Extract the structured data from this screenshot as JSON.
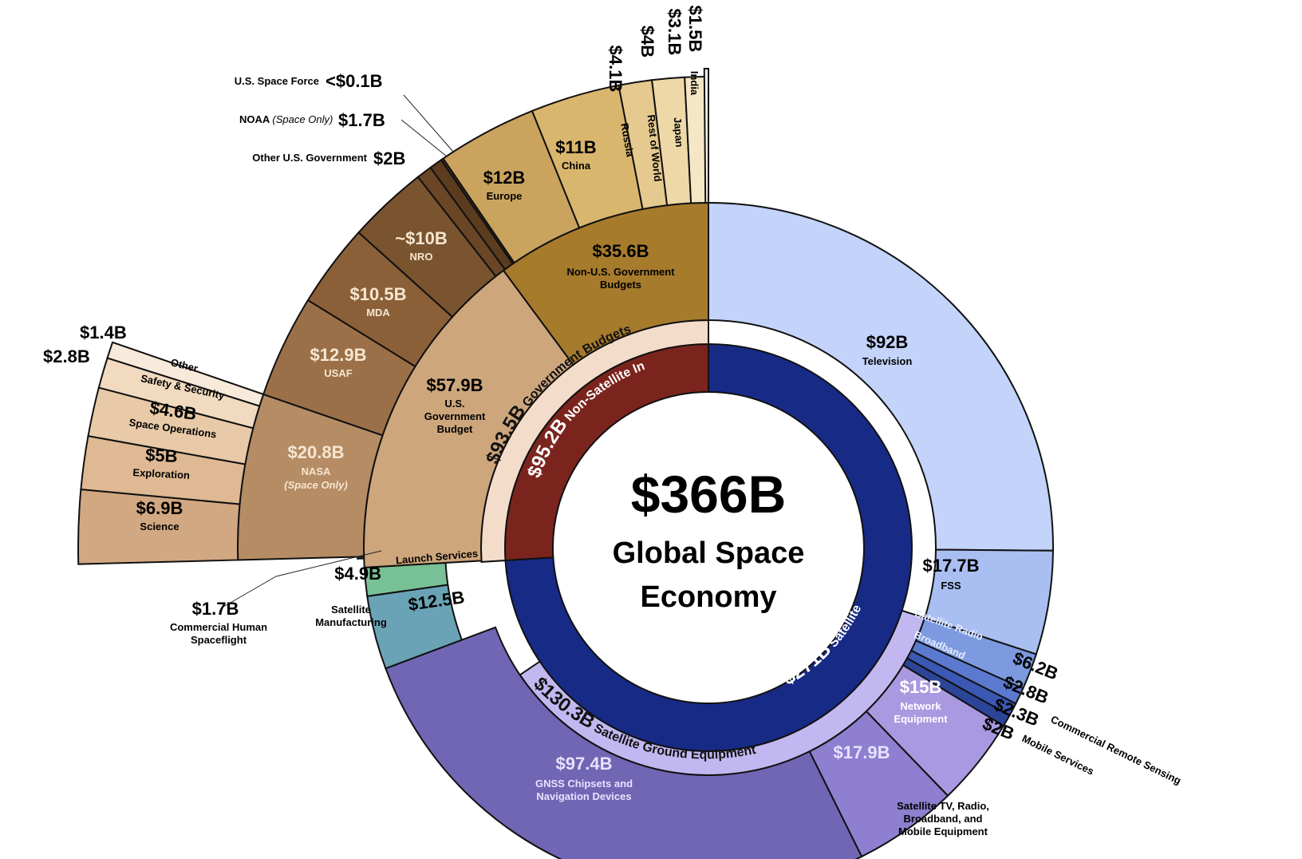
{
  "chart_data": {
    "type": "sunburst",
    "total": {
      "value": "$366B",
      "title_line1": "Global Space",
      "title_line2": "Economy"
    },
    "segments": {
      "tv": {
        "value": "$92B",
        "label": "Television",
        "color": "#c3d3fa"
      },
      "fss": {
        "value": "$17.7B",
        "label": "FSS",
        "color": "#a9bff1"
      },
      "radio": {
        "value": "$6.2B",
        "label": "Satellite Radio",
        "color": "#7d9ae0"
      },
      "broadband": {
        "value": "$2.8B",
        "label": "Broadband",
        "color": "#5b79cf"
      },
      "remote_sensing": {
        "value": "$2.3B",
        "label": "Commercial Remote Sensing",
        "color": "#3b58b4"
      },
      "mobile": {
        "value": "$2B",
        "label": "Mobile Services",
        "color": "#2c4598"
      },
      "network": {
        "value": "$15B",
        "label_line1": "Network",
        "label_line2": "Equipment",
        "color": "#a999e0"
      },
      "consumer": {
        "value": "$17.9B",
        "label_line1": "Satellite TV, Radio,",
        "label_line2": "Broadband, and",
        "label_line3": "Mobile Equipment",
        "color": "#8e7fd0"
      },
      "gnss": {
        "value": "$97.4B",
        "label_line1": "GNSS Chipsets and",
        "label_line2": "Navigation Devices",
        "color": "#7066b4"
      },
      "sat_manuf": {
        "value": "$12.5B",
        "label_line1": "Satellite",
        "label_line2": "Manufacturing",
        "color": "#6aa3b6"
      },
      "launch": {
        "value": "$4.9B",
        "label": "Launch Services",
        "color": "#78c096"
      },
      "chsf": {
        "value": "$1.7B",
        "label_line1": "Commercial Human",
        "label_line2": "Spaceflight",
        "color": "#8a6a48"
      },
      "science": {
        "value": "$6.9B",
        "label": "Science",
        "color": "#d2a882"
      },
      "exploration": {
        "value": "$5B",
        "label": "Exploration",
        "color": "#deb994"
      },
      "space_ops": {
        "value": "$4.6B",
        "label": "Space Operations",
        "color": "#e8caa8"
      },
      "safety": {
        "value": "$2.8B",
        "label": "Safety & Security",
        "color": "#f1dac0"
      },
      "nasa_other": {
        "value": "$1.4B",
        "label": "Other",
        "color": "#f8eada"
      },
      "nasa": {
        "value": "$20.8B",
        "label": "NASA",
        "note": "(Space Only)",
        "color": "#b58c64"
      },
      "usaf": {
        "value": "$12.9B",
        "label": "USAF",
        "color": "#9b7048"
      },
      "mda": {
        "value": "$10.5B",
        "label": "MDA",
        "color": "#8b6039"
      },
      "nro": {
        "value": "~$10B",
        "label": "NRO",
        "color": "#7a532f"
      },
      "other_usgov": {
        "value": "$2B",
        "label": "Other U.S. Government",
        "color": "#6a4626"
      },
      "noaa": {
        "value": "$1.7B",
        "label": "NOAA",
        "note": "(Space Only)",
        "color": "#5c3c1e"
      },
      "space_force": {
        "value": "<$0.1B",
        "label": "U.S. Space Force",
        "color": "#4b2f16"
      },
      "europe": {
        "value": "$12B",
        "label": "Europe",
        "color": "#caa45e"
      },
      "china": {
        "value": "$11B",
        "label": "China",
        "color": "#d9b66e"
      },
      "russia": {
        "value": "$4.1B",
        "label": "Russia",
        "color": "#e6c98e"
      },
      "rest_world": {
        "value": "$4B",
        "label": "Rest of World",
        "color": "#eed8a8"
      },
      "japan": {
        "value": "$3.1B",
        "label": "Japan",
        "color": "#f5e6c6"
      },
      "india": {
        "value": "$1.5B",
        "label": "India",
        "color": "#fbf3e4"
      },
      "usgov": {
        "value": "$57.9B",
        "label_line1": "U.S.",
        "label_line2": "Government",
        "label_line3": "Budget",
        "color": "#cda67c"
      },
      "nonusgov": {
        "value": "$35.6B",
        "label_line1": "Non-U.S. Government",
        "label_line2": "Budgets",
        "color": "#a77b2c"
      },
      "ground_eq": {
        "value": "$130.3B",
        "label": "Satellite Ground Equipment",
        "color": "#c2b8f1"
      },
      "gov_budgets": {
        "value": "$93.5B",
        "label": "Government Budgets",
        "color": "#f4dccb"
      },
      "sat_industry": {
        "value": "$271B",
        "label": "Satellite Industry",
        "color": "#172a86"
      },
      "nonsat": {
        "value": "$95.2B",
        "label": "Non-Satellite Industry",
        "color": "#7b241e"
      }
    }
  }
}
